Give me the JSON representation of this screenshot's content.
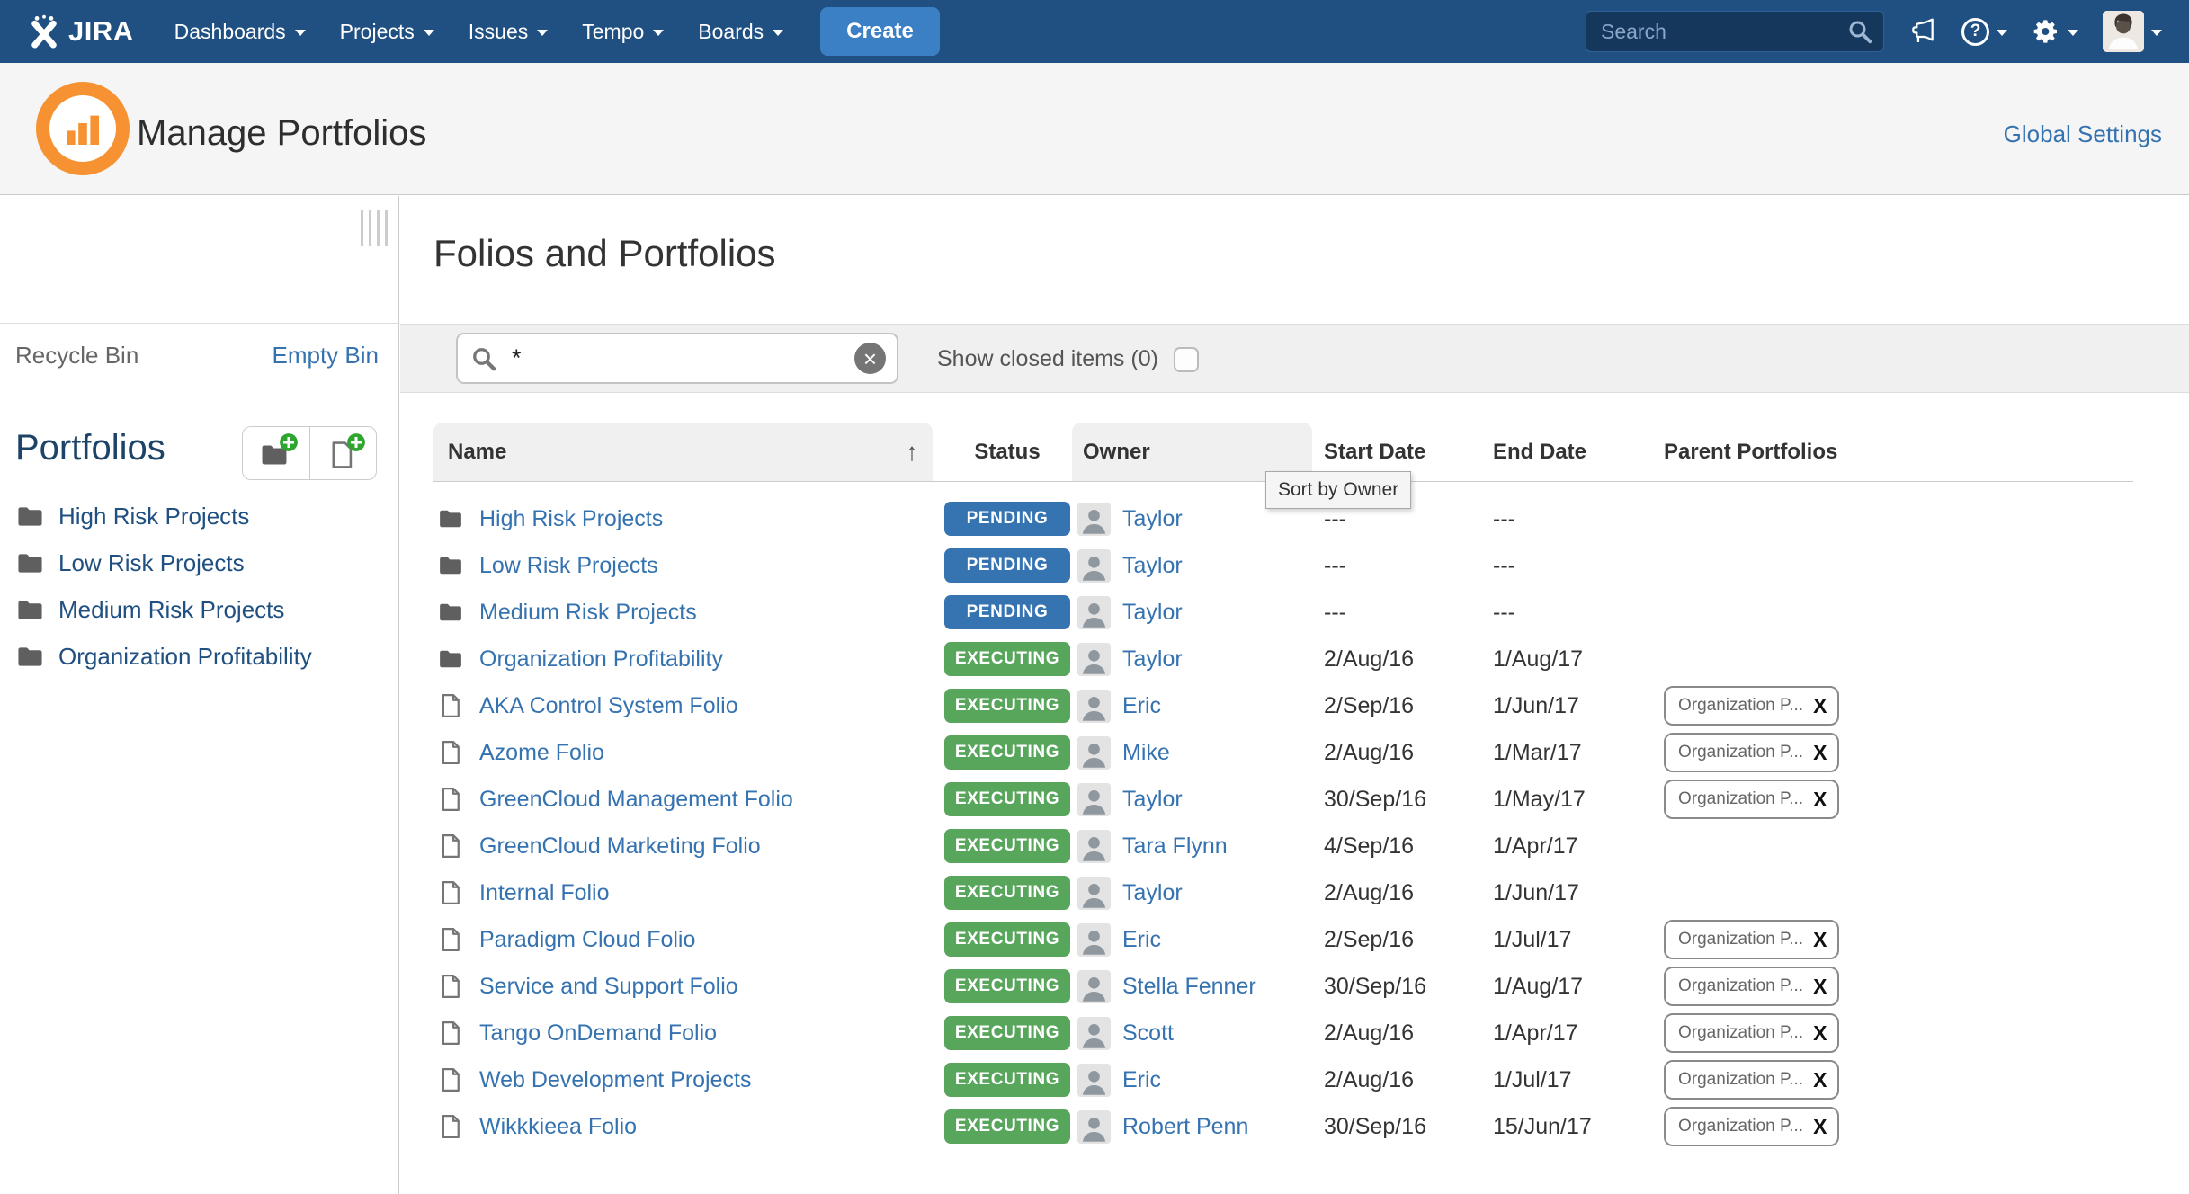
{
  "nav": {
    "brand": "JIRA",
    "items": [
      "Dashboards",
      "Projects",
      "Issues",
      "Tempo",
      "Boards"
    ],
    "create_label": "Create",
    "search_placeholder": "Search"
  },
  "header": {
    "title": "Manage Portfolios",
    "global_settings_label": "Global Settings"
  },
  "sidebar": {
    "recycle_bin_label": "Recycle Bin",
    "empty_bin_label": "Empty Bin",
    "portfolios_label": "Portfolios",
    "items": [
      "High Risk Projects",
      "Low Risk Projects",
      "Medium Risk Projects",
      "Organization Profitability"
    ]
  },
  "main": {
    "title": "Folios and Portfolios",
    "search_value": "*",
    "show_closed_label": "Show closed items (0)",
    "tooltip": "Sort by Owner",
    "table": {
      "columns": [
        "Name",
        "Status",
        "Owner",
        "Start Date",
        "End Date",
        "Parent Portfolios"
      ],
      "rows": [
        {
          "name": "High Risk Projects",
          "icon": "folder",
          "status": "PENDING",
          "owner": "Taylor",
          "start": "---",
          "end": "---",
          "parent": null
        },
        {
          "name": "Low Risk Projects",
          "icon": "folder",
          "status": "PENDING",
          "owner": "Taylor",
          "start": "---",
          "end": "---",
          "parent": null
        },
        {
          "name": "Medium Risk Projects",
          "icon": "folder",
          "status": "PENDING",
          "owner": "Taylor",
          "start": "---",
          "end": "---",
          "parent": null
        },
        {
          "name": "Organization Profitability",
          "icon": "folder",
          "status": "EXECUTING",
          "owner": "Taylor",
          "start": "2/Aug/16",
          "end": "1/Aug/17",
          "parent": null
        },
        {
          "name": "AKA Control System Folio",
          "icon": "file",
          "status": "EXECUTING",
          "owner": "Eric",
          "start": "2/Sep/16",
          "end": "1/Jun/17",
          "parent": "Organization P..."
        },
        {
          "name": "Azome Folio",
          "icon": "file",
          "status": "EXECUTING",
          "owner": "Mike",
          "start": "2/Aug/16",
          "end": "1/Mar/17",
          "parent": "Organization P..."
        },
        {
          "name": "GreenCloud Management Folio",
          "icon": "file",
          "status": "EXECUTING",
          "owner": "Taylor",
          "start": "30/Sep/16",
          "end": "1/May/17",
          "parent": "Organization P..."
        },
        {
          "name": "GreenCloud Marketing Folio",
          "icon": "file",
          "status": "EXECUTING",
          "owner": "Tara Flynn",
          "start": "4/Sep/16",
          "end": "1/Apr/17",
          "parent": null
        },
        {
          "name": "Internal Folio",
          "icon": "file",
          "status": "EXECUTING",
          "owner": "Taylor",
          "start": "2/Aug/16",
          "end": "1/Jun/17",
          "parent": null
        },
        {
          "name": "Paradigm Cloud Folio",
          "icon": "file",
          "status": "EXECUTING",
          "owner": "Eric",
          "start": "2/Sep/16",
          "end": "1/Jul/17",
          "parent": "Organization P..."
        },
        {
          "name": "Service and Support Folio",
          "icon": "file",
          "status": "EXECUTING",
          "owner": "Stella Fenner",
          "start": "30/Sep/16",
          "end": "1/Aug/17",
          "parent": "Organization P..."
        },
        {
          "name": "Tango OnDemand Folio",
          "icon": "file",
          "status": "EXECUTING",
          "owner": "Scott",
          "start": "2/Aug/16",
          "end": "1/Apr/17",
          "parent": "Organization P..."
        },
        {
          "name": "Web Development Projects",
          "icon": "file",
          "status": "EXECUTING",
          "owner": "Eric",
          "start": "2/Aug/16",
          "end": "1/Jul/17",
          "parent": "Organization P..."
        },
        {
          "name": "Wikkkieea Folio",
          "icon": "file",
          "status": "EXECUTING",
          "owner": "Robert Penn",
          "start": "30/Sep/16",
          "end": "15/Jun/17",
          "parent": "Organization P..."
        }
      ]
    }
  },
  "glyphs": {
    "sort_asc_arrow": "↑",
    "clear_x": "×",
    "help_q": "?",
    "remove_x": "X"
  },
  "colors": {
    "nav_bg": "#205081",
    "create_button": "#3b7fc4",
    "link_blue": "#3572b0",
    "status_pending": "#3573b1",
    "status_executing": "#58a55c",
    "logo_orange": "#f79232"
  }
}
